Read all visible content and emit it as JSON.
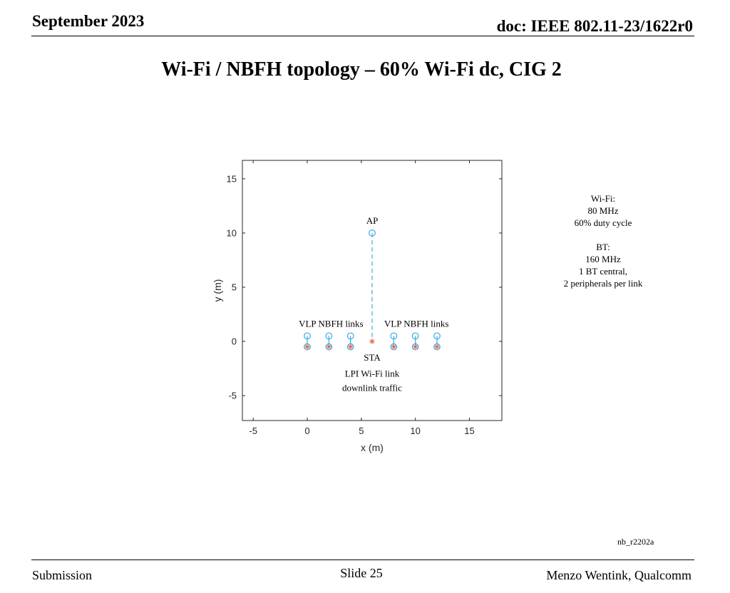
{
  "header": {
    "date": "September 2023",
    "doc": "doc: IEEE 802.11-23/1622r0"
  },
  "slide": {
    "title": "Wi-Fi / NBFH topology – 60% Wi-Fi dc, CIG 2",
    "figure_id": "nb_r2202a"
  },
  "side_note": {
    "lines": [
      "Wi-Fi:",
      "80 MHz",
      "60% duty cycle",
      "",
      "BT:",
      "160 MHz",
      "1 BT central,",
      "2 peripherals per link"
    ]
  },
  "footer": {
    "left": "Submission",
    "center": "Slide 25",
    "right": "Menzo Wentink, Qualcomm"
  },
  "colors": {
    "ap": "#3da9e0",
    "central": "#3da9e0",
    "peripheral": "#e8643c",
    "link": "#3da9e0",
    "axis": "#262626"
  },
  "chart_data": {
    "type": "scatter",
    "xlabel": "x (m)",
    "ylabel": "y (m)",
    "xlim": [
      -6,
      18
    ],
    "ylim": [
      -7.3,
      16.7
    ],
    "xticks": [
      -5,
      0,
      5,
      10,
      15
    ],
    "yticks": [
      -5,
      0,
      5,
      10,
      15
    ],
    "grid": false,
    "series": [
      {
        "marker": "circle",
        "color": "#3da9e0",
        "points": [
          {
            "x": 6,
            "y": 10
          }
        ]
      },
      {
        "marker": "asterisk",
        "color": "#e8643c",
        "points": [
          {
            "x": 6,
            "y": 0
          }
        ]
      },
      {
        "marker": "circle",
        "color": "#3da9e0",
        "points": [
          {
            "x": 0,
            "y": 0.5
          },
          {
            "x": 2,
            "y": 0.5
          },
          {
            "x": 4,
            "y": 0.5
          },
          {
            "x": 8,
            "y": 0.5
          },
          {
            "x": 10,
            "y": 0.5
          },
          {
            "x": 12,
            "y": 0.5
          }
        ]
      },
      {
        "marker": "asterisk-in-circle",
        "color": "#e8643c",
        "points": [
          {
            "x": 0,
            "y": -0.5
          },
          {
            "x": 2,
            "y": -0.5
          },
          {
            "x": 4,
            "y": -0.5
          },
          {
            "x": 8,
            "y": -0.5
          },
          {
            "x": 10,
            "y": -0.5
          },
          {
            "x": 12,
            "y": -0.5
          }
        ]
      }
    ],
    "links": [
      {
        "from": [
          6,
          10
        ],
        "to": [
          6,
          0
        ],
        "style": "dashed",
        "color": "#3da9e0"
      },
      {
        "from": [
          0,
          0.5
        ],
        "to": [
          0,
          -0.5
        ],
        "style": "solid",
        "color": "#3da9e0"
      },
      {
        "from": [
          2,
          0.5
        ],
        "to": [
          2,
          -0.5
        ],
        "style": "solid",
        "color": "#3da9e0"
      },
      {
        "from": [
          4,
          0.5
        ],
        "to": [
          4,
          -0.5
        ],
        "style": "solid",
        "color": "#3da9e0"
      },
      {
        "from": [
          8,
          0.5
        ],
        "to": [
          8,
          -0.5
        ],
        "style": "solid",
        "color": "#3da9e0"
      },
      {
        "from": [
          10,
          0.5
        ],
        "to": [
          10,
          -0.5
        ],
        "style": "solid",
        "color": "#3da9e0"
      },
      {
        "from": [
          12,
          0.5
        ],
        "to": [
          12,
          -0.5
        ],
        "style": "solid",
        "color": "#3da9e0"
      }
    ],
    "annotations": [
      {
        "text": "AP",
        "x": 6,
        "y": 11.1
      },
      {
        "text": "VLP NBFH links",
        "x": 2.2,
        "y": 1.6
      },
      {
        "text": "VLP NBFH links",
        "x": 10.1,
        "y": 1.6
      },
      {
        "text": "STA",
        "x": 6,
        "y": -1.5
      },
      {
        "text": "LPI Wi-Fi link",
        "x": 6,
        "y": -3.0
      },
      {
        "text": "downlink traffic",
        "x": 6,
        "y": -4.3
      }
    ]
  }
}
